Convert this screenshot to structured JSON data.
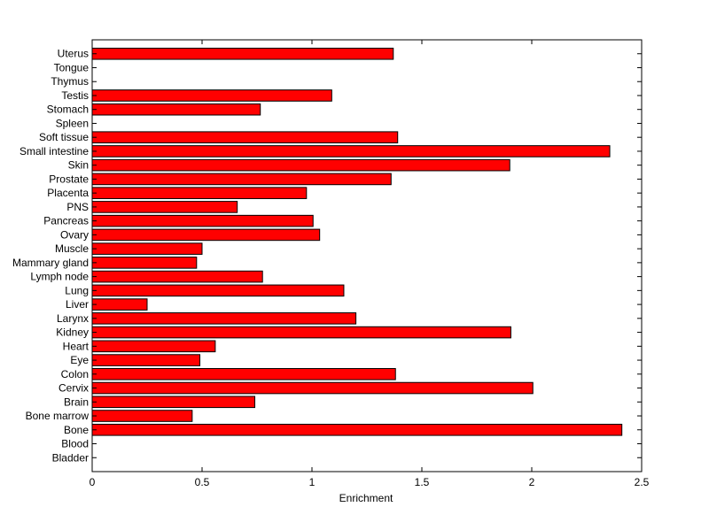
{
  "chart_data": {
    "type": "bar",
    "orientation": "horizontal",
    "title": "",
    "xlabel": "Enrichment",
    "ylabel": "",
    "xlim": [
      0,
      2.5
    ],
    "xticks": [
      0,
      0.5,
      1,
      1.5,
      2,
      2.5
    ],
    "xtick_labels": [
      "0",
      "0.5",
      "1",
      "1.5",
      "2",
      "2.5"
    ],
    "grid": false,
    "bar_color": "#ff0000",
    "edge_color": "#000000",
    "categories": [
      "Bladder",
      "Blood",
      "Bone",
      "Bone marrow",
      "Brain",
      "Cervix",
      "Colon",
      "Eye",
      "Heart",
      "Kidney",
      "Larynx",
      "Liver",
      "Lung",
      "Lymph node",
      "Mammary gland",
      "Muscle",
      "Ovary",
      "Pancreas",
      "PNS",
      "Placenta",
      "Prostate",
      "Skin",
      "Small intestine",
      "Soft tissue",
      "Spleen",
      "Stomach",
      "Testis",
      "Thymus",
      "Tongue",
      "Uterus"
    ],
    "values": [
      0,
      0,
      2.41,
      0.455,
      0.74,
      2.005,
      1.38,
      0.49,
      0.56,
      1.905,
      1.2,
      0.25,
      1.145,
      0.775,
      0.475,
      0.5,
      1.035,
      1.005,
      0.66,
      0.975,
      1.36,
      1.9,
      2.355,
      1.39,
      0,
      0.765,
      1.09,
      0,
      0,
      1.37
    ]
  }
}
